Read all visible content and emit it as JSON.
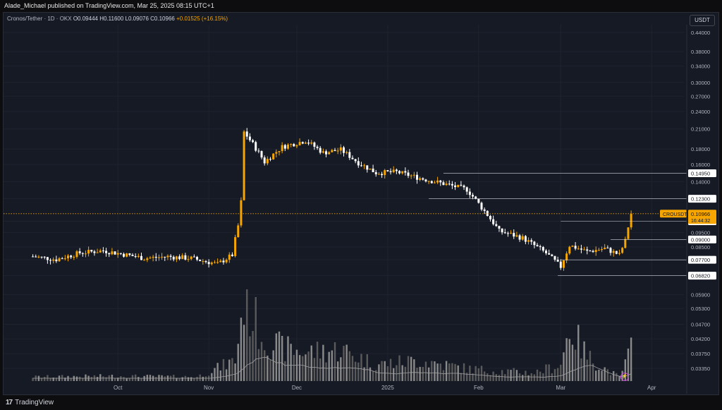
{
  "header": {
    "publisher_line": "Alade_Michael published on TradingView.com, Mar 25, 2025 08:15 UTC+1"
  },
  "legend": {
    "symbol": "Cronos/Tether · 1D · OKX",
    "open": "O0.09444",
    "high": "H0.11600",
    "low": "L0.09076",
    "close": "C0.10966",
    "change": "+0.01525 (+16.15%)"
  },
  "currency_button": "USDT",
  "footer": {
    "logo_mark": "17",
    "logo_text": "TradingView"
  },
  "icons": {
    "zap": "lightning-icon",
    "logo": "tradingview-logo-icon"
  },
  "colors": {
    "background": "#161a25",
    "up": "#f7a600",
    "down": "#ffffff",
    "price_line": "#f7a600",
    "volume_up": "#8a8a8a",
    "volume_down": "#5a5a5a",
    "volume_ma": "#a0a0a0"
  },
  "chart_data": {
    "type": "candlestick",
    "symbol": "CROUSDT",
    "scale": "log",
    "y_ticks": [
      "0.44000",
      "0.38000",
      "0.34000",
      "0.30000",
      "0.27000",
      "0.24000",
      "0.21000",
      "0.18000",
      "0.16000",
      "0.14000",
      "0.12300",
      "0.10350",
      "0.09500",
      "0.08500",
      "0.07700",
      "0.06820",
      "0.05900",
      "0.05300",
      "0.04700",
      "0.04200",
      "0.03750",
      "0.03350"
    ],
    "x_ticks": [
      "Oct",
      "Nov",
      "Dec",
      "2025",
      "Feb",
      "Mar",
      "Apr"
    ],
    "price_label": "CROUSDT",
    "price_value": "0.10966",
    "countdown": "16:44:32",
    "levels": [
      "0.14950",
      "0.12300",
      "0.10350",
      "0.09000",
      "0.07700",
      "0.06820"
    ],
    "last_price": 0.10966,
    "price_series": [
      [
        "2024-09-02",
        0.079
      ],
      [
        "2024-09-10",
        0.0772
      ],
      [
        "2024-09-18",
        0.0812
      ],
      [
        "2024-09-26",
        0.0826
      ],
      [
        "2024-10-02",
        0.0806
      ],
      [
        "2024-10-10",
        0.0779
      ],
      [
        "2024-10-18",
        0.0789
      ],
      [
        "2024-10-26",
        0.0779
      ],
      [
        "2024-11-04",
        0.0745
      ],
      [
        "2024-11-09",
        0.0799
      ],
      [
        "2024-11-11",
        0.1
      ],
      [
        "2024-11-12",
        0.12
      ],
      [
        "2024-11-13",
        0.205
      ],
      [
        "2024-11-20",
        0.163
      ],
      [
        "2024-11-26",
        0.183
      ],
      [
        "2024-12-04",
        0.192
      ],
      [
        "2024-12-10",
        0.175
      ],
      [
        "2024-12-16",
        0.179
      ],
      [
        "2024-12-22",
        0.162
      ],
      [
        "2024-12-28",
        0.15
      ],
      [
        "2025-01-04",
        0.151
      ],
      [
        "2025-01-12",
        0.144
      ],
      [
        "2025-01-20",
        0.138
      ],
      [
        "2025-01-28",
        0.132
      ],
      [
        "2025-02-02",
        0.115
      ],
      [
        "2025-02-08",
        0.096
      ],
      [
        "2025-02-16",
        0.091
      ],
      [
        "2025-02-24",
        0.081
      ],
      [
        "2025-03-01",
        0.073
      ],
      [
        "2025-03-04",
        0.086
      ],
      [
        "2025-03-10",
        0.082
      ],
      [
        "2025-03-16",
        0.084
      ],
      [
        "2025-03-21",
        0.08
      ],
      [
        "2025-03-23",
        0.089
      ],
      [
        "2025-03-25",
        0.10966
      ]
    ],
    "volume_series": [
      [
        "2024-09-02",
        0.05
      ],
      [
        "2024-09-30",
        0.06
      ],
      [
        "2024-10-28",
        0.05
      ],
      [
        "2024-11-10",
        0.25
      ],
      [
        "2024-11-13",
        1.0
      ],
      [
        "2024-11-20",
        0.5
      ],
      [
        "2024-11-26",
        0.4
      ],
      [
        "2024-12-04",
        0.35
      ],
      [
        "2024-12-16",
        0.38
      ],
      [
        "2024-12-28",
        0.2
      ],
      [
        "2025-01-12",
        0.25
      ],
      [
        "2025-01-28",
        0.15
      ],
      [
        "2025-02-08",
        0.12
      ],
      [
        "2025-02-20",
        0.1
      ],
      [
        "2025-03-01",
        0.2
      ],
      [
        "2025-03-04",
        0.65
      ],
      [
        "2025-03-10",
        0.3
      ],
      [
        "2025-03-16",
        0.15
      ],
      [
        "2025-03-21",
        0.05
      ],
      [
        "2025-03-25",
        0.38
      ]
    ]
  }
}
